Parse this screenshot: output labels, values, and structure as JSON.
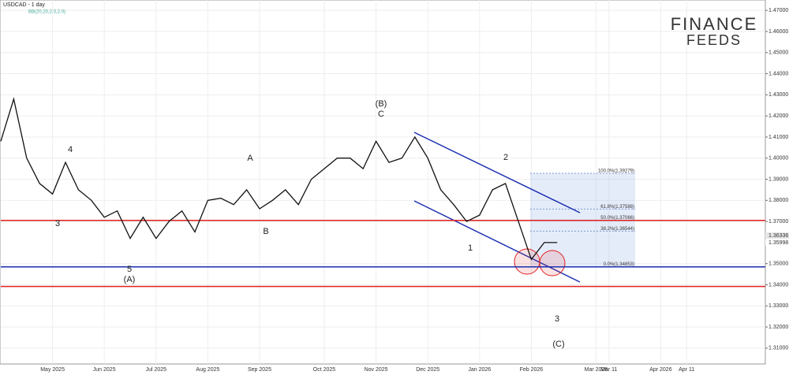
{
  "chart_data": {
    "type": "line",
    "title": "USDCAD - 1 day",
    "subtitle": "BB(20,20,2.0,2.0)",
    "logo": [
      "FINANCE",
      "FEEDS"
    ],
    "categories": [
      null,
      null,
      null,
      null,
      "May 2025",
      null,
      null,
      null,
      "Jun 2025",
      null,
      null,
      null,
      "Jul 2025",
      null,
      null,
      null,
      "Aug 2025",
      null,
      null,
      null,
      "Sep 2025",
      null,
      null,
      null,
      null,
      "Oct 2025",
      null,
      null,
      null,
      "Nov 2025",
      null,
      null,
      null,
      "Dec 2025",
      null,
      null,
      null,
      "Jan 2026",
      null,
      null,
      null,
      "Feb 2026",
      null,
      null,
      null,
      null,
      "Mar 2026",
      "Mar 11",
      null,
      null,
      null,
      "Apr 2026",
      null,
      "Apr 11",
      null,
      null,
      null,
      null,
      null
    ],
    "series": [
      {
        "name": "USDCAD",
        "color": "#111111",
        "values": [
          1.408,
          1.428,
          1.4,
          1.388,
          1.383,
          1.398,
          1.385,
          1.38,
          1.372,
          1.375,
          1.362,
          1.372,
          1.362,
          1.37,
          1.375,
          1.365,
          1.38,
          1.381,
          1.378,
          1.385,
          1.376,
          1.38,
          1.385,
          1.378,
          1.39,
          1.395,
          1.4,
          1.4,
          1.395,
          1.408,
          1.398,
          1.4,
          1.41,
          1.4,
          1.385,
          1.378,
          1.37,
          1.373,
          1.385,
          1.388,
          1.37,
          1.352,
          1.36,
          1.36,
          null,
          null,
          null,
          null,
          null,
          null,
          null,
          null,
          null,
          null,
          null,
          null,
          null,
          null,
          null
        ]
      }
    ],
    "ylim": [
      1.3025,
      1.4749
    ],
    "yticks": [
      {
        "value": 1.31,
        "label": "1.31000"
      },
      {
        "value": 1.32,
        "label": "1.32000"
      },
      {
        "value": 1.33,
        "label": "1.33000"
      },
      {
        "value": 1.34,
        "label": "1.34000"
      },
      {
        "value": 1.35,
        "label": "1.35000"
      },
      {
        "value": 1.37,
        "label": "1.37000"
      },
      {
        "value": 1.38,
        "label": "1.38000"
      },
      {
        "value": 1.39,
        "label": "1.39000"
      },
      {
        "value": 1.4,
        "label": "1.40000"
      },
      {
        "value": 1.41,
        "label": "1.41000"
      },
      {
        "value": 1.42,
        "label": "1.42000"
      },
      {
        "value": 1.43,
        "label": "1.43000"
      },
      {
        "value": 1.44,
        "label": "1.44000"
      },
      {
        "value": 1.45,
        "label": "1.45000"
      },
      {
        "value": 1.46,
        "label": "1.46000"
      },
      {
        "value": 1.47,
        "label": "1.47000"
      }
    ],
    "levels": [
      {
        "value": 1.3705,
        "color": "#e02020"
      },
      {
        "value": 1.3485,
        "color": "#1a2fb0"
      },
      {
        "value": 1.3392,
        "color": "#e02020"
      }
    ],
    "fib": [
      {
        "value": 1.39279,
        "label": "100.0%(1.39279)"
      },
      {
        "value": 1.37588,
        "label": "61.8%(1.37588)"
      },
      {
        "value": 1.37066,
        "label": "50.0%(1.37066)"
      },
      {
        "value": 1.36544,
        "label": "38.2%(1.36544)"
      },
      {
        "value": 1.34853,
        "label": "0.0%(1.34853)"
      }
    ],
    "price_tags": [
      {
        "value": 1.36336,
        "label": "1.36336",
        "color": "#555555"
      },
      {
        "value": 1.35998,
        "label": "1.35998",
        "color": "#e02020"
      }
    ],
    "annotations": [
      "3",
      "4",
      "5",
      "(A)",
      "A",
      "B",
      "(B)",
      "C",
      "1",
      "2",
      "3",
      "(C)"
    ],
    "grid": true
  }
}
